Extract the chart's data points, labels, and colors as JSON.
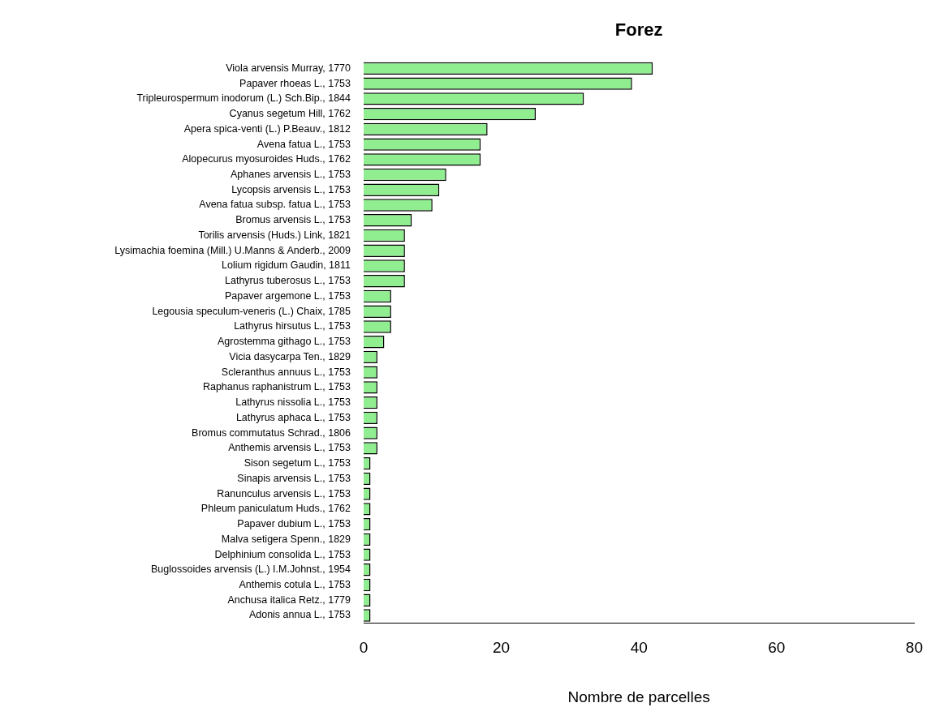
{
  "chart_data": {
    "type": "bar",
    "orientation": "horizontal",
    "title": "Forez",
    "xlabel": "Nombre de parcelles",
    "categories": [
      "Viola arvensis Murray, 1770",
      "Papaver rhoeas L., 1753",
      "Tripleurospermum inodorum (L.) Sch.Bip., 1844",
      "Cyanus segetum Hill, 1762",
      "Apera spica-venti (L.) P.Beauv., 1812",
      "Avena fatua L., 1753",
      "Alopecurus myosuroides Huds., 1762",
      "Aphanes arvensis L., 1753",
      "Lycopsis arvensis L., 1753",
      "Avena fatua subsp. fatua L., 1753",
      "Bromus arvensis L., 1753",
      "Torilis arvensis (Huds.) Link, 1821",
      "Lysimachia foemina (Mill.) U.Manns & Anderb., 2009",
      "Lolium rigidum Gaudin, 1811",
      "Lathyrus tuberosus L., 1753",
      "Papaver argemone L., 1753",
      "Legousia speculum-veneris (L.) Chaix, 1785",
      "Lathyrus hirsutus L., 1753",
      "Agrostemma githago L., 1753",
      "Vicia dasycarpa Ten., 1829",
      "Scleranthus annuus L., 1753",
      "Raphanus raphanistrum L., 1753",
      "Lathyrus nissolia L., 1753",
      "Lathyrus aphaca L., 1753",
      "Bromus commutatus Schrad., 1806",
      "Anthemis arvensis L., 1753",
      "Sison segetum L., 1753",
      "Sinapis arvensis L., 1753",
      "Ranunculus arvensis L., 1753",
      "Phleum paniculatum Huds., 1762",
      "Papaver dubium L., 1753",
      "Malva setigera Spenn., 1829",
      "Delphinium consolida L., 1753",
      "Buglossoides arvensis (L.) I.M.Johnst., 1954",
      "Anthemis cotula L., 1753",
      "Anchusa italica Retz., 1779",
      "Adonis annua L., 1753"
    ],
    "values": [
      42,
      39,
      32,
      25,
      18,
      17,
      17,
      12,
      11,
      10,
      7,
      6,
      6,
      6,
      6,
      4,
      4,
      4,
      3,
      2,
      2,
      2,
      2,
      2,
      2,
      2,
      1,
      1,
      1,
      1,
      1,
      1,
      1,
      1,
      1,
      1,
      1
    ],
    "color": "#90ee90",
    "xlim": [
      0,
      80
    ],
    "xticks": [
      0,
      20,
      40,
      60,
      80
    ],
    "grid": false,
    "legend": false
  }
}
